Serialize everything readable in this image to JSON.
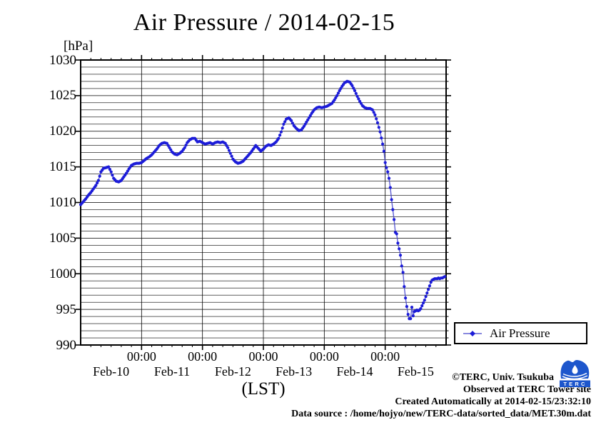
{
  "title": "Air Pressure / 2014-02-15",
  "axes": {
    "y_unit_label": "[hPa]",
    "x_axis_label": "(LST)",
    "y_tick_labels": [
      "1030",
      "1025",
      "1020",
      "1015",
      "1010",
      "1005",
      "1000",
      "995",
      "990"
    ],
    "x_time_label": "00:00",
    "x_day_labels": [
      "Feb-10",
      "Feb-11",
      "Feb-12",
      "Feb-13",
      "Feb-14",
      "Feb-15"
    ]
  },
  "legend": {
    "label": "Air Pressure"
  },
  "footer": {
    "copyright": "©TERC, Univ. Tsukuba",
    "observed": "Observed at TERC Tower site",
    "created": "Created Automatically at 2014-02-15/23:32:10",
    "source": "Data source : /home/hojyo/new/TERC-data/sorted_data/MET.30m.dat"
  },
  "logo": {
    "label": "TERC"
  },
  "colors": {
    "line": "#4444cc",
    "marker": "#1c1cd8",
    "logo": "#1d56cc",
    "axis": "#000000",
    "grid": "#000000"
  },
  "chart_data": {
    "type": "line",
    "title": "Air Pressure / 2014-02-15",
    "xlabel": "(LST)",
    "ylabel": "hPa",
    "ylim": [
      990,
      1030
    ],
    "xlim_hours": [
      0,
      144
    ],
    "x_unit": "hours since 2014-02-10 00:00 LST",
    "grid": true,
    "y_minor_step": 1,
    "y_major_step": 5,
    "x_minor_tick_hours": 4,
    "x_major_tick_hours": 24,
    "legend_position": "outside-right-below",
    "marker_interval_minutes": 30,
    "series": [
      {
        "name": "Air Pressure",
        "points": [
          [
            0,
            1009.7
          ],
          [
            1,
            1010.1
          ],
          [
            2,
            1010.5
          ],
          [
            3,
            1011.0
          ],
          [
            4,
            1011.4
          ],
          [
            5,
            1011.9
          ],
          [
            6,
            1012.4
          ],
          [
            7,
            1013.1
          ],
          [
            8,
            1014.3
          ],
          [
            9,
            1014.8
          ],
          [
            10,
            1014.9
          ],
          [
            11,
            1015.0
          ],
          [
            12,
            1014.3
          ],
          [
            13,
            1013.4
          ],
          [
            14,
            1013.0
          ],
          [
            15,
            1012.9
          ],
          [
            16,
            1013.1
          ],
          [
            17,
            1013.6
          ],
          [
            18,
            1014.1
          ],
          [
            19,
            1014.7
          ],
          [
            20,
            1015.2
          ],
          [
            21,
            1015.4
          ],
          [
            22,
            1015.5
          ],
          [
            23,
            1015.5
          ],
          [
            24,
            1015.6
          ],
          [
            25,
            1015.9
          ],
          [
            26,
            1016.2
          ],
          [
            27,
            1016.4
          ],
          [
            28,
            1016.7
          ],
          [
            29,
            1017.1
          ],
          [
            30,
            1017.5
          ],
          [
            31,
            1018.0
          ],
          [
            32,
            1018.3
          ],
          [
            33,
            1018.4
          ],
          [
            34,
            1018.3
          ],
          [
            35,
            1017.7
          ],
          [
            36,
            1017.1
          ],
          [
            37,
            1016.8
          ],
          [
            38,
            1016.7
          ],
          [
            39,
            1016.9
          ],
          [
            40,
            1017.2
          ],
          [
            41,
            1017.7
          ],
          [
            42,
            1018.4
          ],
          [
            43,
            1018.8
          ],
          [
            44,
            1019.0
          ],
          [
            45,
            1019.0
          ],
          [
            46,
            1018.5
          ],
          [
            47,
            1018.6
          ],
          [
            48,
            1018.4
          ],
          [
            49,
            1018.2
          ],
          [
            50,
            1018.3
          ],
          [
            51,
            1018.4
          ],
          [
            52,
            1018.2
          ],
          [
            53,
            1018.4
          ],
          [
            54,
            1018.5
          ],
          [
            55,
            1018.4
          ],
          [
            56,
            1018.5
          ],
          [
            57,
            1018.3
          ],
          [
            58,
            1017.7
          ],
          [
            59,
            1016.9
          ],
          [
            60,
            1016.1
          ],
          [
            61,
            1015.7
          ],
          [
            62,
            1015.5
          ],
          [
            63,
            1015.6
          ],
          [
            64,
            1015.8
          ],
          [
            65,
            1016.2
          ],
          [
            66,
            1016.6
          ],
          [
            67,
            1017.0
          ],
          [
            68,
            1017.5
          ],
          [
            69,
            1018.0
          ],
          [
            70,
            1017.6
          ],
          [
            71,
            1017.2
          ],
          [
            72,
            1017.5
          ],
          [
            73,
            1017.9
          ],
          [
            74,
            1018.1
          ],
          [
            75,
            1018.0
          ],
          [
            76,
            1018.2
          ],
          [
            77,
            1018.5
          ],
          [
            78,
            1019.0
          ],
          [
            79,
            1019.9
          ],
          [
            80,
            1021.0
          ],
          [
            81,
            1021.7
          ],
          [
            82,
            1021.9
          ],
          [
            83,
            1021.5
          ],
          [
            84,
            1020.8
          ],
          [
            85,
            1020.4
          ],
          [
            86,
            1020.1
          ],
          [
            87,
            1020.2
          ],
          [
            88,
            1020.7
          ],
          [
            89,
            1021.3
          ],
          [
            90,
            1021.9
          ],
          [
            91,
            1022.5
          ],
          [
            92,
            1023.0
          ],
          [
            93,
            1023.3
          ],
          [
            94,
            1023.4
          ],
          [
            95,
            1023.3
          ],
          [
            96,
            1023.4
          ],
          [
            97,
            1023.5
          ],
          [
            98,
            1023.7
          ],
          [
            99,
            1023.9
          ],
          [
            100,
            1024.4
          ],
          [
            101,
            1025.0
          ],
          [
            102,
            1025.7
          ],
          [
            103,
            1026.3
          ],
          [
            104,
            1026.8
          ],
          [
            105,
            1027.0
          ],
          [
            106,
            1026.9
          ],
          [
            107,
            1026.4
          ],
          [
            108,
            1025.7
          ],
          [
            109,
            1024.9
          ],
          [
            110,
            1024.2
          ],
          [
            111,
            1023.6
          ],
          [
            112,
            1023.3
          ],
          [
            113,
            1023.2
          ],
          [
            114,
            1023.2
          ],
          [
            115,
            1023.0
          ],
          [
            116,
            1022.3
          ],
          [
            117,
            1021.2
          ],
          [
            118,
            1019.9
          ],
          [
            119,
            1018.2
          ],
          [
            119.5,
            1017.2
          ],
          [
            120,
            1015.6
          ],
          [
            120.5,
            1014.9
          ],
          [
            121,
            1014.3
          ],
          [
            121.5,
            1013.4
          ],
          [
            122,
            1012.1
          ],
          [
            122.5,
            1010.4
          ],
          [
            123,
            1009.0
          ],
          [
            123.5,
            1007.6
          ],
          [
            124,
            1005.8
          ],
          [
            124.5,
            1005.6
          ],
          [
            125,
            1004.3
          ],
          [
            125.5,
            1003.5
          ],
          [
            126,
            1002.6
          ],
          [
            126.5,
            1001.1
          ],
          [
            127,
            1000.2
          ],
          [
            127.5,
            998.2
          ],
          [
            128,
            996.6
          ],
          [
            128.5,
            995.4
          ],
          [
            129,
            994.3
          ],
          [
            129.5,
            993.7
          ],
          [
            130,
            993.7
          ],
          [
            130.5,
            995.3
          ],
          [
            131,
            994.1
          ],
          [
            131.5,
            994.7
          ],
          [
            132,
            994.8
          ],
          [
            132.5,
            994.9
          ],
          [
            133,
            994.8
          ],
          [
            133.5,
            994.9
          ],
          [
            134,
            995.1
          ],
          [
            134.5,
            995.5
          ],
          [
            135,
            995.9
          ],
          [
            135.5,
            996.3
          ],
          [
            136,
            996.8
          ],
          [
            136.5,
            997.3
          ],
          [
            137,
            997.8
          ],
          [
            137.5,
            998.3
          ],
          [
            138,
            998.8
          ],
          [
            138.5,
            999.1
          ],
          [
            139,
            999.2
          ],
          [
            139.5,
            999.3
          ],
          [
            140,
            999.3
          ],
          [
            140.5,
            999.3
          ],
          [
            141,
            999.4
          ],
          [
            141.5,
            999.3
          ],
          [
            142,
            999.4
          ],
          [
            142.5,
            999.4
          ],
          [
            143,
            999.5
          ],
          [
            143.5,
            999.6
          ]
        ]
      }
    ]
  }
}
